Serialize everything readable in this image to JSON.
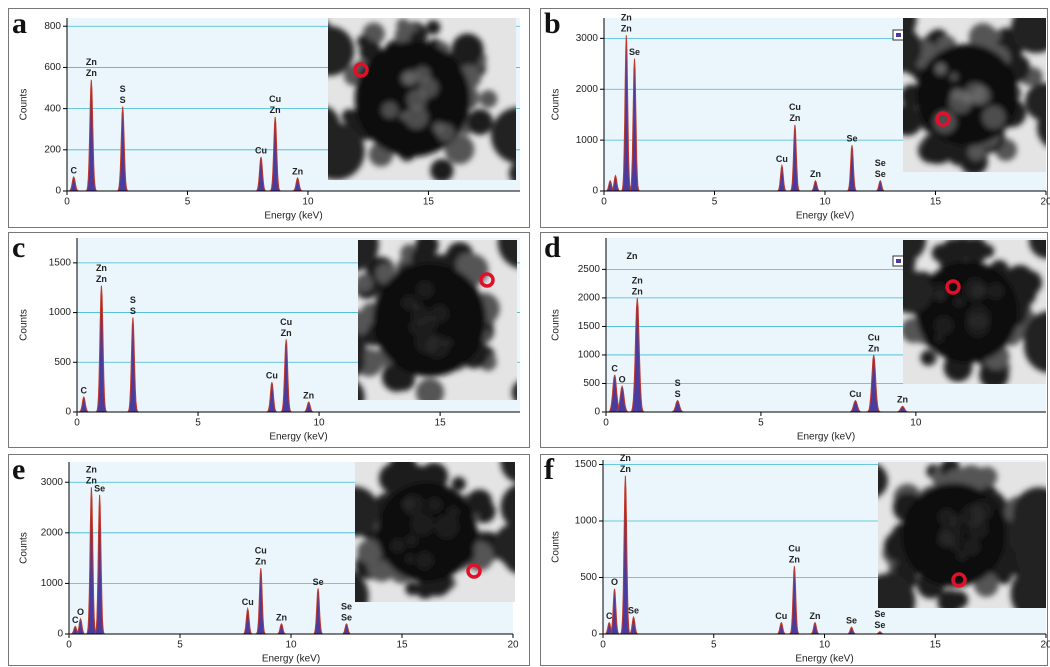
{
  "chart_data": [
    {
      "type": "spectrum",
      "panel": "a",
      "ylabel": "Counts",
      "xlabel": "Energy (keV)",
      "xlim": [
        0,
        18.8
      ],
      "ylim": [
        0,
        840
      ],
      "xticks": [
        0,
        5,
        10,
        15
      ],
      "yticks": [
        0,
        200,
        400,
        600,
        800
      ],
      "grid": true,
      "fill": "#4a3c9e",
      "line": "#c0392b",
      "x": [
        0.28,
        1.01,
        2.31,
        8.05,
        8.64,
        9.57
      ],
      "values": [
        68,
        540,
        410,
        165,
        360,
        63
      ],
      "peak_labels": [
        [
          "C"
        ],
        [
          "Zn",
          "Zn"
        ],
        [
          "S",
          "S"
        ],
        [
          "Cu"
        ],
        [
          "Cu",
          "Zn"
        ],
        [
          "Zn"
        ]
      ]
    },
    {
      "type": "spectrum",
      "panel": "b",
      "ylabel": "Counts",
      "xlabel": "Energy (keV)",
      "xlim": [
        0,
        20
      ],
      "ylim": [
        0,
        3400
      ],
      "xticks": [
        0,
        5,
        10,
        15,
        20
      ],
      "yticks": [
        0,
        1000,
        2000,
        3000
      ],
      "grid": true,
      "fill": "#4a3c9e",
      "line": "#c0392b",
      "x": [
        0.28,
        0.52,
        1.01,
        1.38,
        8.05,
        8.64,
        9.57,
        11.22,
        12.5
      ],
      "values": [
        200,
        300,
        3060,
        2600,
        500,
        1300,
        200,
        900,
        200
      ],
      "peak_labels": [
        [],
        [],
        [
          "Zn",
          "Zn"
        ],
        [
          "Se"
        ],
        [
          "Cu"
        ],
        [
          "Cu",
          "Zn"
        ],
        [
          "Zn"
        ],
        [
          "Se"
        ],
        [
          "Se",
          "Se"
        ]
      ]
    },
    {
      "type": "spectrum",
      "panel": "c",
      "ylabel": "Counts",
      "xlabel": "Energy (keV)",
      "xlim": [
        0,
        18.3
      ],
      "ylim": [
        0,
        1750
      ],
      "xticks": [
        0,
        5,
        10,
        15
      ],
      "yticks": [
        0,
        500,
        1000,
        1500
      ],
      "grid": true,
      "fill": "#4a3c9e",
      "line": "#c0392b",
      "x": [
        0.28,
        1.01,
        2.31,
        8.05,
        8.64,
        9.57
      ],
      "values": [
        150,
        1270,
        950,
        300,
        730,
        100
      ],
      "peak_labels": [
        [
          "C"
        ],
        [
          "Zn",
          "Zn"
        ],
        [
          "S",
          "S"
        ],
        [
          "Cu"
        ],
        [
          "Cu",
          "Zn"
        ],
        [
          "Zn"
        ]
      ]
    },
    {
      "type": "spectrum",
      "panel": "d",
      "ylabel": "Counts",
      "xlabel": "Energy (keV)",
      "xlim": [
        0,
        14.2
      ],
      "ylim": [
        0,
        3050
      ],
      "xticks": [
        0,
        5,
        10
      ],
      "yticks": [
        0,
        500,
        1000,
        1500,
        2000,
        2500
      ],
      "grid": true,
      "fill": "#4a3c9e",
      "line": "#c0392b",
      "x": [
        0.28,
        0.52,
        1.01,
        2.31,
        8.05,
        8.64,
        9.57
      ],
      "values": [
        650,
        450,
        2000,
        200,
        200,
        1000,
        100
      ],
      "peak_labels": [
        [
          "C"
        ],
        [
          "O"
        ],
        [
          "Zn",
          "Zn"
        ],
        [
          "S",
          "S"
        ],
        [
          "Cu"
        ],
        [
          "Cu",
          "Zn"
        ],
        [
          "Zn"
        ]
      ],
      "annotations": [
        {
          "text": "Zn",
          "x": 0.84,
          "y": 2720
        }
      ]
    },
    {
      "type": "spectrum",
      "panel": "e",
      "ylabel": "Counts",
      "xlabel": "Energy (keV)",
      "xlim": [
        0,
        20
      ],
      "ylim": [
        0,
        3400
      ],
      "xticks": [
        0,
        5,
        10,
        15,
        20
      ],
      "yticks": [
        0,
        1000,
        2000,
        3000
      ],
      "grid": true,
      "fill": "#4a3c9e",
      "line": "#c0392b",
      "x": [
        0.28,
        0.52,
        1.01,
        1.38,
        8.05,
        8.64,
        9.57,
        11.22,
        12.5
      ],
      "values": [
        150,
        300,
        2900,
        2750,
        500,
        1300,
        200,
        900,
        200
      ],
      "peak_labels": [
        [
          "C"
        ],
        [
          "O"
        ],
        [
          "Zn",
          "Zn"
        ],
        [
          "Se"
        ],
        [
          "Cu"
        ],
        [
          "Cu",
          "Zn"
        ],
        [
          "Zn"
        ],
        [
          "Se"
        ],
        [
          "Se",
          "Se"
        ]
      ]
    },
    {
      "type": "spectrum",
      "panel": "f",
      "ylabel": "Counts",
      "xlabel": "Energy (keV)",
      "xlim": [
        0,
        20
      ],
      "ylim": [
        0,
        1540
      ],
      "xticks": [
        0,
        5,
        10,
        15,
        20
      ],
      "yticks": [
        0,
        500,
        1000,
        1500
      ],
      "grid": true,
      "fill": "#4a3c9e",
      "line": "#c0392b",
      "x": [
        0.28,
        0.52,
        1.01,
        1.38,
        8.05,
        8.64,
        9.57,
        11.22,
        12.5
      ],
      "values": [
        100,
        400,
        1400,
        150,
        100,
        600,
        100,
        60,
        20
      ],
      "peak_labels": [
        [
          "C"
        ],
        [
          "O"
        ],
        [
          "Zn",
          "Zn"
        ],
        [
          "Se"
        ],
        [
          "Cu"
        ],
        [
          "Cu",
          "Zn"
        ],
        [
          "Zn"
        ],
        [
          "Se"
        ],
        [
          "Se",
          "Se"
        ]
      ]
    }
  ]
}
